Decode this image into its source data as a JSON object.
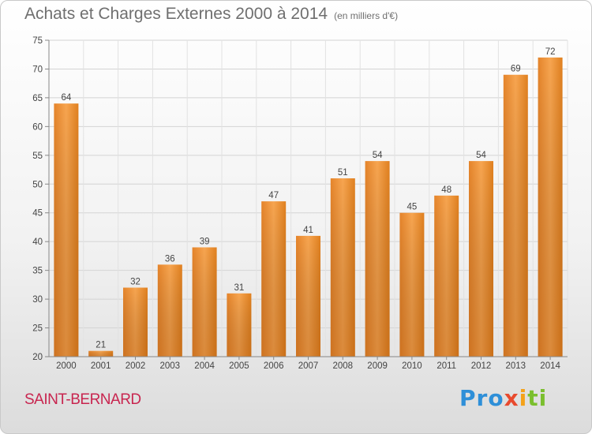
{
  "header": {
    "title": "Achats et Charges Externes 2000 à 2014",
    "subtitle": "(en milliers d'€)"
  },
  "footer": {
    "place": "SAINT-BERNARD",
    "logo": {
      "p1": "Pro",
      "p2": "x",
      "p3": "i",
      "p4": "ti"
    }
  },
  "colors": {
    "bar_light": "#f7a24c",
    "bar_dark": "#e07f22",
    "title": "#6f6f6f",
    "place": "#c8254f"
  },
  "chart_data": {
    "type": "bar",
    "title": "Achats et Charges Externes 2000 à 2014",
    "subtitle": "(en milliers d'€)",
    "xlabel": "",
    "ylabel": "",
    "categories": [
      "2000",
      "2001",
      "2002",
      "2003",
      "2004",
      "2005",
      "2006",
      "2007",
      "2008",
      "2009",
      "2010",
      "2011",
      "2012",
      "2013",
      "2014"
    ],
    "values": [
      64,
      21,
      32,
      36,
      39,
      31,
      47,
      41,
      51,
      54,
      45,
      48,
      54,
      69,
      72
    ],
    "ylim": [
      20,
      75
    ],
    "yticks": [
      20,
      25,
      30,
      35,
      40,
      45,
      50,
      55,
      60,
      65,
      70,
      75
    ],
    "grid": true,
    "data_labels": true
  }
}
